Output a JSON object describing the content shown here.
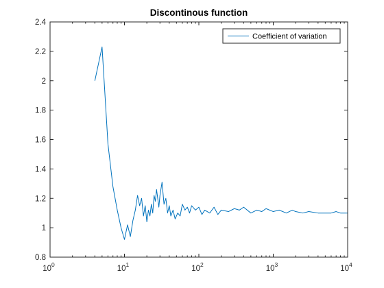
{
  "chart_data": {
    "type": "line",
    "title": "Discontinous function",
    "xscale": "log",
    "xlim": [
      1,
      10000
    ],
    "ylim": [
      0.8,
      2.4
    ],
    "x_ticks": [
      {
        "value": 1,
        "base": "10",
        "exp": "0"
      },
      {
        "value": 10,
        "base": "10",
        "exp": "1"
      },
      {
        "value": 100,
        "base": "10",
        "exp": "2"
      },
      {
        "value": 1000,
        "base": "10",
        "exp": "3"
      },
      {
        "value": 10000,
        "base": "10",
        "exp": "4"
      }
    ],
    "y_ticks": [
      {
        "value": 0.8,
        "label": "0.8"
      },
      {
        "value": 1.0,
        "label": "1"
      },
      {
        "value": 1.2,
        "label": "1.2"
      },
      {
        "value": 1.4,
        "label": "1.4"
      },
      {
        "value": 1.6,
        "label": "1.6"
      },
      {
        "value": 1.8,
        "label": "1.8"
      },
      {
        "value": 2.0,
        "label": "2"
      },
      {
        "value": 2.2,
        "label": "2.2"
      },
      {
        "value": 2.4,
        "label": "2.4"
      }
    ],
    "legend_position": "top-right",
    "grid": false,
    "series": [
      {
        "name": "Coefficient of variation",
        "color": "#0072bd",
        "x": [
          4,
          5,
          6,
          7,
          8,
          9,
          10,
          11,
          12,
          13,
          14,
          15,
          16,
          17,
          18,
          19,
          20,
          21,
          22,
          23,
          24,
          25,
          26,
          27,
          28,
          29,
          30,
          32,
          34,
          36,
          38,
          40,
          42,
          45,
          48,
          52,
          56,
          60,
          65,
          70,
          75,
          80,
          90,
          100,
          110,
          120,
          140,
          160,
          180,
          200,
          250,
          300,
          350,
          400,
          500,
          600,
          700,
          800,
          1000,
          1200,
          1500,
          1800,
          2000,
          2500,
          3000,
          4000,
          5000,
          6000,
          7000,
          8000,
          9000,
          10000
        ],
        "y": [
          2.0,
          2.23,
          1.57,
          1.28,
          1.12,
          1.0,
          0.92,
          1.02,
          0.94,
          1.05,
          1.12,
          1.22,
          1.15,
          1.2,
          1.08,
          1.15,
          1.04,
          1.12,
          1.08,
          1.16,
          1.1,
          1.22,
          1.18,
          1.26,
          1.2,
          1.14,
          1.22,
          1.31,
          1.16,
          1.2,
          1.1,
          1.15,
          1.08,
          1.12,
          1.06,
          1.1,
          1.08,
          1.16,
          1.12,
          1.14,
          1.1,
          1.15,
          1.12,
          1.14,
          1.09,
          1.12,
          1.1,
          1.14,
          1.09,
          1.12,
          1.11,
          1.13,
          1.12,
          1.14,
          1.1,
          1.12,
          1.11,
          1.13,
          1.11,
          1.12,
          1.1,
          1.12,
          1.11,
          1.1,
          1.11,
          1.1,
          1.1,
          1.1,
          1.11,
          1.1,
          1.1,
          1.1
        ]
      }
    ]
  }
}
